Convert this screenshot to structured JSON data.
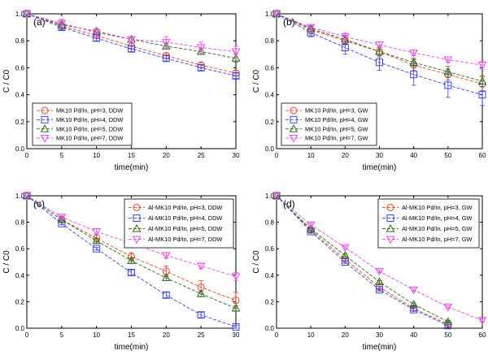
{
  "figure": {
    "color_scheme": {
      "pH3": "#e8462a",
      "pH4": "#3b45e6",
      "pH5": "#2e6b1e",
      "pH7": "#e64ce6"
    },
    "marker_icons": {
      "pH3": "circle-icon",
      "pH4": "square-icon",
      "pH5": "triangle-up-icon",
      "pH7": "triangle-down-icon"
    }
  },
  "chart_data": [
    {
      "id": "a",
      "type": "line",
      "panel_label": "(a)",
      "xlabel": "time(min)",
      "ylabel": "C / C0",
      "xlim": [
        0,
        30
      ],
      "ylim": [
        0,
        1.0
      ],
      "xticks": [
        "0",
        "5",
        "10",
        "15",
        "20",
        "25",
        "30"
      ],
      "yticks": [
        "0.0",
        "0.2",
        "0.4",
        "0.6",
        "0.8",
        "1.0"
      ],
      "legend_position": "bottom-left",
      "grid": false,
      "series": [
        {
          "name": "MK10 Pd/In, pH=3, DDW",
          "key": "pH3",
          "marker": "circle",
          "line": "dash",
          "x": [
            0,
            5,
            10,
            15,
            20,
            25,
            30
          ],
          "y": [
            1.0,
            0.91,
            0.84,
            0.76,
            0.69,
            0.62,
            0.56
          ],
          "err": [
            0,
            0.03,
            0.02,
            0.02,
            0.02,
            0.02,
            0.02
          ]
        },
        {
          "name": "MK10 Pd/In, pH=4, DDW",
          "key": "pH4",
          "marker": "square",
          "line": "dash",
          "x": [
            0,
            5,
            10,
            15,
            20,
            25,
            30
          ],
          "y": [
            1.0,
            0.9,
            0.82,
            0.74,
            0.67,
            0.6,
            0.54
          ],
          "err": [
            0,
            0.02,
            0.02,
            0.02,
            0.02,
            0.02,
            0.02
          ]
        },
        {
          "name": "MK10 Pd/In, pH=5, DDW",
          "key": "pH5",
          "marker": "triangle-up",
          "line": "dash",
          "x": [
            0,
            5,
            10,
            15,
            20,
            25,
            30
          ],
          "y": [
            1.0,
            0.92,
            0.87,
            0.81,
            0.76,
            0.72,
            0.67
          ],
          "err": [
            0,
            0.03,
            0.02,
            0.02,
            0.02,
            0.02,
            0.03
          ]
        },
        {
          "name": "MK10 Pd/In, pH=7, DDW",
          "key": "pH7",
          "marker": "triangle-down",
          "line": "dash",
          "x": [
            0,
            5,
            10,
            15,
            20,
            25,
            30
          ],
          "y": [
            1.0,
            0.93,
            0.86,
            0.81,
            0.79,
            0.75,
            0.72
          ],
          "err": [
            0,
            0.03,
            0.03,
            0.02,
            0.04,
            0.04,
            0.04
          ]
        }
      ]
    },
    {
      "id": "b",
      "type": "line",
      "panel_label": "(b)",
      "xlabel": "time(min)",
      "ylabel": "C / C0",
      "xlim": [
        0,
        60
      ],
      "ylim": [
        0,
        1.0
      ],
      "xticks": [
        "0",
        "10",
        "20",
        "30",
        "40",
        "50",
        "60"
      ],
      "yticks": [
        "0.0",
        "0.2",
        "0.4",
        "0.6",
        "0.8",
        "1.0"
      ],
      "legend_position": "bottom-left",
      "grid": false,
      "series": [
        {
          "name": "MK10 Pd/In, pH=3, GW",
          "key": "pH3",
          "marker": "circle",
          "line": "dash",
          "x": [
            0,
            10,
            20,
            30,
            40,
            50,
            60
          ],
          "y": [
            1.0,
            0.88,
            0.8,
            0.72,
            0.62,
            0.55,
            0.48
          ],
          "err": [
            0,
            0.03,
            0.03,
            0.04,
            0.04,
            0.04,
            0.05
          ]
        },
        {
          "name": "MK10 Pd/In, pH=4, GW",
          "key": "pH4",
          "marker": "square",
          "line": "dash",
          "x": [
            0,
            10,
            20,
            30,
            40,
            50,
            60
          ],
          "y": [
            1.0,
            0.86,
            0.75,
            0.64,
            0.55,
            0.47,
            0.4
          ],
          "err": [
            0,
            0.03,
            0.05,
            0.06,
            0.08,
            0.09,
            0.08
          ]
        },
        {
          "name": "MK10 Pd/In, pH=5, GW",
          "key": "pH5",
          "marker": "triangle-up",
          "line": "dash",
          "x": [
            0,
            10,
            20,
            30,
            40,
            50,
            60
          ],
          "y": [
            1.0,
            0.89,
            0.81,
            0.72,
            0.64,
            0.57,
            0.5
          ],
          "err": [
            0,
            0.02,
            0.03,
            0.03,
            0.03,
            0.04,
            0.04
          ]
        },
        {
          "name": "MK10 Pd/In, pH=7, GW",
          "key": "pH7",
          "marker": "triangle-down",
          "line": "dash",
          "x": [
            0,
            10,
            20,
            30,
            40,
            50,
            60
          ],
          "y": [
            1.0,
            0.9,
            0.83,
            0.77,
            0.71,
            0.66,
            0.62
          ],
          "err": [
            0,
            0.02,
            0.03,
            0.02,
            0.02,
            0.02,
            0.03
          ]
        }
      ]
    },
    {
      "id": "c",
      "type": "line",
      "panel_label": "(c)",
      "xlabel": "time(min)",
      "ylabel": "C / C0",
      "xlim": [
        0,
        30
      ],
      "ylim": [
        0,
        1.0
      ],
      "xticks": [
        "0",
        "5",
        "10",
        "15",
        "20",
        "25",
        "30"
      ],
      "yticks": [
        "0.0",
        "0.2",
        "0.4",
        "0.6",
        "0.8",
        "1.0"
      ],
      "legend_position": "top-right",
      "grid": false,
      "series": [
        {
          "name": "Al-MK10 Pd/In, pH=3, DDW",
          "key": "pH3",
          "marker": "circle",
          "line": "dash",
          "x": [
            0,
            5,
            10,
            15,
            20,
            25,
            30
          ],
          "y": [
            1.0,
            0.82,
            0.68,
            0.54,
            0.43,
            0.31,
            0.21
          ],
          "err": [
            0,
            0.02,
            0.03,
            0.03,
            0.04,
            0.05,
            0.06
          ]
        },
        {
          "name": "Al-MK10 Pd/In, pH=4, DDW",
          "key": "pH4",
          "marker": "square",
          "line": "dash",
          "x": [
            0,
            5,
            10,
            15,
            20,
            25,
            30
          ],
          "y": [
            1.0,
            0.79,
            0.6,
            0.42,
            0.25,
            0.1,
            0.01
          ],
          "err": [
            0,
            0.01,
            0.01,
            0.02,
            0.02,
            0.02,
            0.01
          ]
        },
        {
          "name": "Al-MK10 Pd/In, pH=5, DDW",
          "key": "pH5",
          "marker": "triangle-up",
          "line": "dash",
          "x": [
            0,
            5,
            10,
            15,
            20,
            25,
            30
          ],
          "y": [
            1.0,
            0.82,
            0.66,
            0.51,
            0.38,
            0.26,
            0.15
          ],
          "err": [
            0,
            0.01,
            0.02,
            0.02,
            0.02,
            0.02,
            0.02
          ]
        },
        {
          "name": "Al-MK10 Pd/In, pH=7, DDW",
          "key": "pH7",
          "marker": "triangle-down",
          "line": "dash",
          "x": [
            0,
            5,
            10,
            15,
            20,
            25,
            30
          ],
          "y": [
            1.0,
            0.84,
            0.73,
            0.64,
            0.55,
            0.47,
            0.39
          ],
          "err": [
            0,
            0.01,
            0.02,
            0.02,
            0.02,
            0.02,
            0.03
          ]
        }
      ]
    },
    {
      "id": "d",
      "type": "line",
      "panel_label": "(d)",
      "xlabel": "time(min)",
      "ylabel": "C / C0",
      "xlim": [
        0,
        60
      ],
      "ylim": [
        0,
        1.0
      ],
      "xticks": [
        "0",
        "10",
        "20",
        "30",
        "40",
        "50",
        "60"
      ],
      "yticks": [
        "0.0",
        "0.2",
        "0.4",
        "0.6",
        "0.8",
        "1.0"
      ],
      "legend_position": "top-right",
      "grid": false,
      "series": [
        {
          "name": "Al-MK10 Pd/In, pH=3, GW",
          "key": "pH3",
          "marker": "circle",
          "line": "dash",
          "x": [
            0,
            10,
            20,
            30,
            40,
            50
          ],
          "y": [
            1.0,
            0.74,
            0.52,
            0.31,
            0.15,
            0.03
          ],
          "err": [
            0,
            0.01,
            0.01,
            0.02,
            0.02,
            0.01
          ]
        },
        {
          "name": "Al-MK10 Pd/In, pH=4, GW",
          "key": "pH4",
          "marker": "square",
          "line": "dash",
          "x": [
            0,
            10,
            20,
            30,
            40,
            50
          ],
          "y": [
            1.0,
            0.73,
            0.5,
            0.29,
            0.14,
            0.02
          ],
          "err": [
            0,
            0.01,
            0.01,
            0.01,
            0.01,
            0.01
          ]
        },
        {
          "name": "Al-MK10 Pd/In, pH=5, GW",
          "key": "pH5",
          "marker": "triangle-up",
          "line": "dash",
          "x": [
            0,
            10,
            20,
            30,
            40,
            50
          ],
          "y": [
            1.0,
            0.75,
            0.55,
            0.35,
            0.18,
            0.05
          ],
          "err": [
            0,
            0.01,
            0.01,
            0.01,
            0.01,
            0.01
          ]
        },
        {
          "name": "Al-MK10 Pd/In, pH=7, GW",
          "key": "pH7",
          "marker": "triangle-down",
          "line": "dash",
          "x": [
            0,
            10,
            20,
            30,
            40,
            50,
            60
          ],
          "y": [
            1.0,
            0.78,
            0.61,
            0.43,
            0.29,
            0.16,
            0.06
          ],
          "err": [
            0,
            0.01,
            0.01,
            0.01,
            0.01,
            0.01,
            0.01
          ]
        }
      ]
    }
  ]
}
